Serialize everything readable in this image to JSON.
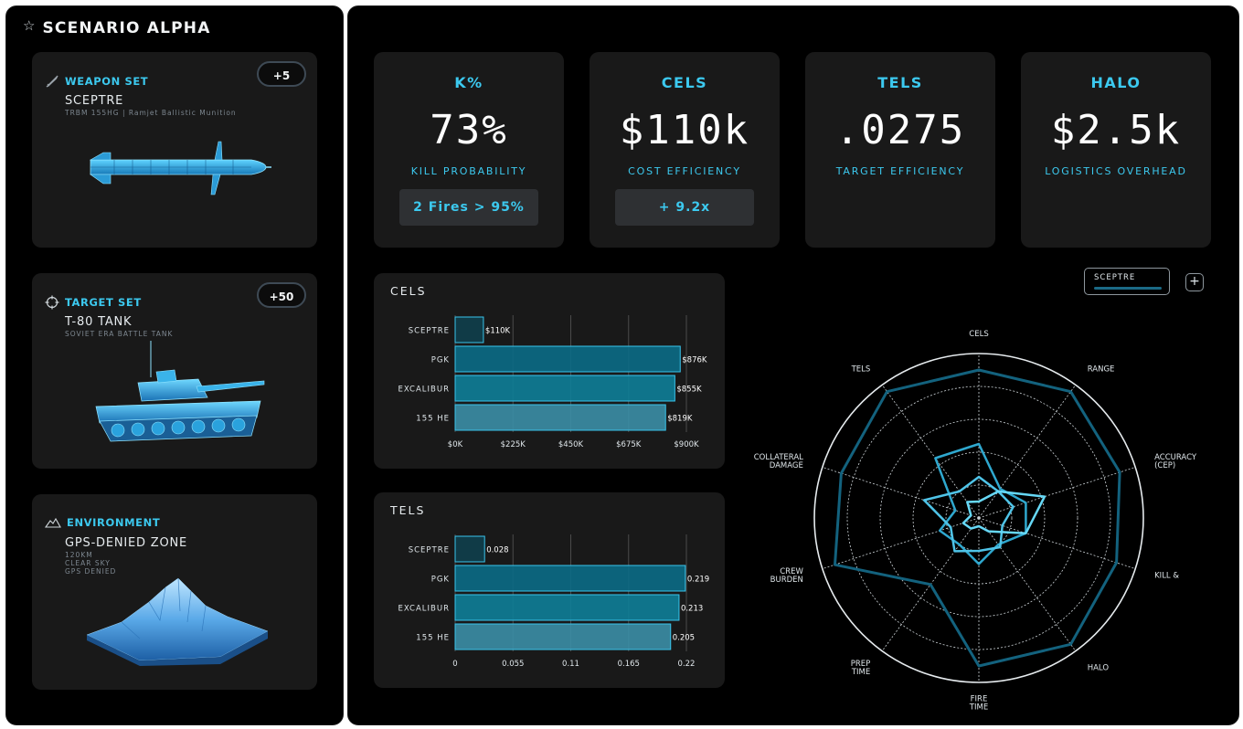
{
  "scenario": {
    "title": "SCENARIO ALPHA",
    "icon": "star-icon"
  },
  "weapon_set": {
    "label": "WEAPON SET",
    "badge": "+5",
    "name": "SCEPTRE",
    "description": "TRBM 155HG | Ramjet Ballistic Munition",
    "icon": "missile-icon"
  },
  "target_set": {
    "label": "TARGET SET",
    "badge": "+50",
    "name": "T-80 TANK",
    "description": "SOVIET ERA BATTLE TANK",
    "icon": "crosshair-icon"
  },
  "environment": {
    "label": "ENVIRONMENT",
    "name": "GPS-DENIED ZONE",
    "details": [
      "120KM",
      "CLEAR SKY",
      "GPS DENIED"
    ],
    "icon": "mountain-icon"
  },
  "kpis": [
    {
      "label": "K%",
      "value": "73%",
      "sub": "KILL PROBABILITY",
      "badge": "2 Fires > 95%"
    },
    {
      "label": "CELS",
      "value": "$110k",
      "sub": "COST EFFICIENCY",
      "badge": "+ 9.2x"
    },
    {
      "label": "TELS",
      "value": ".0275",
      "sub": "TARGET EFFICIENCY"
    },
    {
      "label": "HALO",
      "value": "$2.5k",
      "sub": "LOGISTICS OVERHEAD"
    }
  ],
  "legend": {
    "label": "SCEPTRE",
    "add": "+"
  },
  "chart_data": [
    {
      "type": "bar",
      "orientation": "horizontal",
      "title": "CELS",
      "categories": [
        "SCEPTRE",
        "PGK",
        "EXCALIBUR",
        "155 HE"
      ],
      "values": [
        110,
        876,
        855,
        819
      ],
      "value_labels": [
        "$110K",
        "$876K",
        "$855K",
        "$819K"
      ],
      "xlim": [
        0,
        900
      ],
      "ticks": [
        0,
        225,
        450,
        675,
        900
      ],
      "tick_labels": [
        "$0K",
        "$225K",
        "$450K",
        "$675K",
        "$900K"
      ],
      "grid": true,
      "colors": [
        "#0f3f4c",
        "#0b6b86",
        "#0e7e98",
        "#3b8ea6"
      ]
    },
    {
      "type": "bar",
      "orientation": "horizontal",
      "title": "TELS",
      "categories": [
        "SCEPTRE",
        "PGK",
        "EXCALIBUR",
        "155 HE"
      ],
      "values": [
        0.028,
        0.219,
        0.213,
        0.205
      ],
      "value_labels": [
        "0.028",
        "0.219",
        "0.213",
        "0.205"
      ],
      "xlim": [
        0,
        0.22
      ],
      "ticks": [
        0,
        0.055,
        0.11,
        0.165,
        0.22
      ],
      "tick_labels": [
        "0",
        "0.055",
        "0.11",
        "0.165",
        "0.22"
      ],
      "grid": true,
      "colors": [
        "#0f3f4c",
        "#0b6b86",
        "#0e7e98",
        "#3b8ea6"
      ]
    },
    {
      "type": "radar",
      "axes": [
        {
          "lines": [
            "CELS"
          ]
        },
        {
          "lines": [
            "RANGE"
          ]
        },
        {
          "lines": [
            "ACCURACY",
            "(CEP)"
          ]
        },
        {
          "lines": [
            "KILL &"
          ]
        },
        {
          "lines": [
            "HALO"
          ]
        },
        {
          "lines": [
            "FIRE",
            "TIME"
          ]
        },
        {
          "lines": [
            "PREP",
            "TIME"
          ]
        },
        {
          "lines": [
            "CREW",
            "BURDEN"
          ]
        },
        {
          "lines": [
            "COLLATERAL",
            "DAMAGE"
          ]
        },
        {
          "lines": [
            "TELS"
          ]
        }
      ],
      "rmax": 1,
      "rings": 5,
      "series": [
        {
          "values": [
            0.9,
            0.95,
            0.9,
            0.88,
            0.95,
            0.9,
            0.5,
            0.92,
            0.88,
            0.95
          ],
          "color": "#13627e",
          "width": 3
        },
        {
          "values": [
            0.45,
            0.22,
            0.3,
            0.3,
            0.2,
            0.28,
            0.2,
            0.25,
            0.15,
            0.45
          ],
          "color": "#2fa8cf",
          "width": 2.5
        },
        {
          "values": [
            0.25,
            0.2,
            0.22,
            0.15,
            0.22,
            0.2,
            0.25,
            0.18,
            0.35,
            0.2
          ],
          "color": "#4fc4e8",
          "width": 2.5
        },
        {
          "values": [
            0.1,
            0.2,
            0.42,
            0.3,
            0.1,
            0.05,
            0.08,
            0.1,
            0.05,
            0.12
          ],
          "color": "#66d8f6",
          "width": 2.5
        }
      ]
    }
  ]
}
